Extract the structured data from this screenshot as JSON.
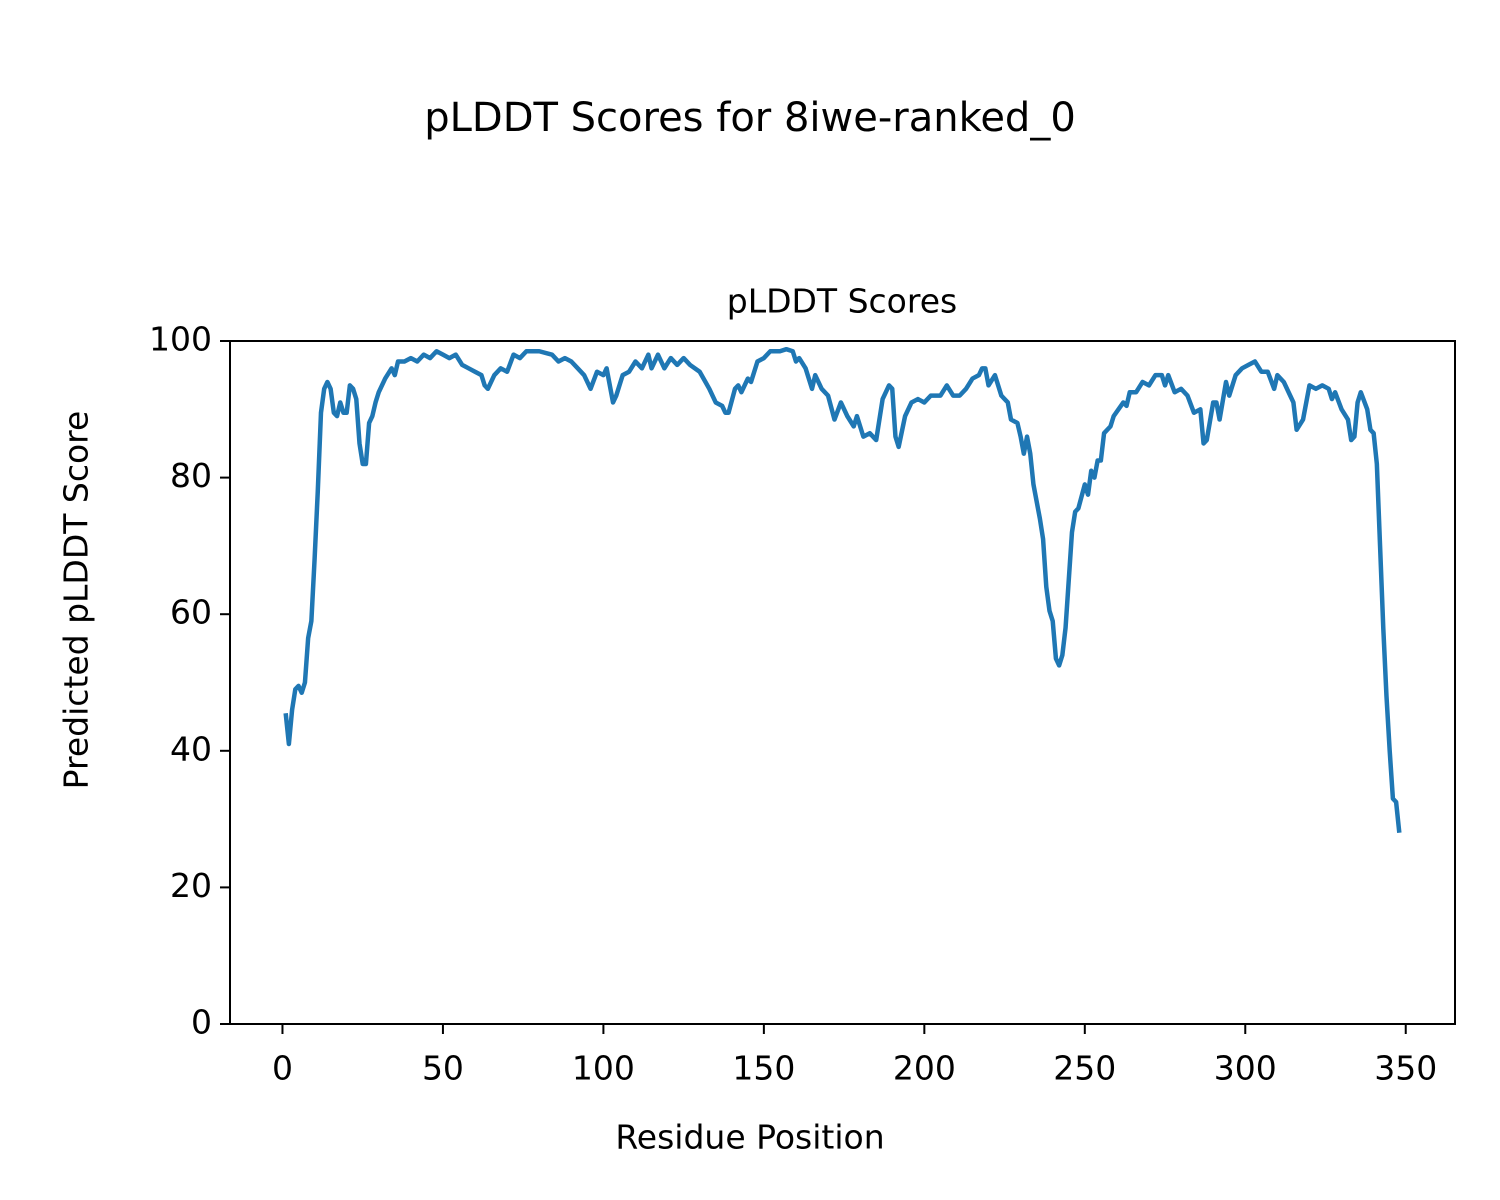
{
  "chart_data": {
    "type": "line",
    "suptitle": "pLDDT Scores for 8iwe-ranked_0",
    "title": "pLDDT Scores",
    "xlabel": "Residue Position",
    "ylabel": "Predicted pLDDT Score",
    "x": [
      1,
      2,
      3,
      4,
      5,
      6,
      7,
      8,
      9,
      10,
      11,
      12,
      13,
      14,
      15,
      16,
      17,
      18,
      19,
      20,
      21,
      22,
      23,
      24,
      25,
      26,
      27,
      28,
      29,
      30,
      32,
      34,
      35,
      36,
      38,
      40,
      42,
      44,
      46,
      48,
      50,
      52,
      54,
      56,
      58,
      60,
      62,
      63,
      64,
      66,
      68,
      70,
      72,
      74,
      76,
      80,
      84,
      86,
      88,
      90,
      92,
      94,
      96,
      98,
      100,
      101,
      103,
      104,
      106,
      108,
      110,
      112,
      114,
      115,
      117,
      119,
      121,
      123,
      125,
      127,
      130,
      133,
      135,
      137,
      138,
      139,
      141,
      142,
      143,
      145,
      146,
      148,
      150,
      152,
      155,
      157,
      159,
      160,
      161,
      163,
      165,
      166,
      168,
      170,
      172,
      174,
      176,
      178,
      179,
      181,
      183,
      185,
      187,
      189,
      190,
      191,
      192,
      194,
      196,
      198,
      200,
      202,
      205,
      207,
      209,
      211,
      213,
      215,
      217,
      218,
      219,
      220,
      222,
      224,
      226,
      227,
      229,
      230,
      231,
      232,
      233,
      234,
      236,
      237,
      238,
      239,
      240,
      241,
      242,
      243,
      244,
      245,
      246,
      247,
      248,
      250,
      251,
      252,
      253,
      254,
      255,
      256,
      258,
      259,
      262,
      263,
      264,
      266,
      268,
      270,
      272,
      274,
      275,
      276,
      278,
      280,
      282,
      284,
      286,
      287,
      288,
      290,
      291,
      292,
      294,
      295,
      297,
      299,
      301,
      303,
      305,
      307,
      309,
      310,
      312,
      314,
      315,
      316,
      318,
      320,
      322,
      324,
      326,
      327,
      328,
      330,
      332,
      333,
      334,
      335,
      336,
      338,
      339,
      340,
      341,
      342,
      343,
      344,
      345,
      346,
      347,
      348
    ],
    "series": [
      {
        "name": "pLDDT",
        "color": "#1f77b4",
        "values": [
          45.5,
          41,
          46,
          49,
          49.5,
          48.5,
          50,
          56.5,
          59,
          68,
          78,
          89.5,
          93,
          94,
          93,
          89.5,
          89,
          91,
          89.5,
          89.5,
          93.5,
          93,
          91.5,
          85,
          82,
          82,
          88,
          89,
          91,
          92.5,
          94.5,
          96,
          95,
          97,
          97,
          97.5,
          97,
          98,
          97.5,
          98.5,
          98,
          97.5,
          98,
          96.5,
          96,
          95.5,
          95,
          93.5,
          93,
          95,
          96,
          95.5,
          98,
          97.5,
          98.5,
          98.5,
          98,
          97,
          97.5,
          97,
          96,
          95,
          93,
          95.5,
          95,
          96,
          91,
          92,
          95,
          95.5,
          97,
          96,
          98,
          96,
          98,
          96,
          97.5,
          96.5,
          97.5,
          96.5,
          95.5,
          93,
          91,
          90.5,
          89.5,
          89.5,
          93,
          93.5,
          92.5,
          94.5,
          94,
          97,
          97.5,
          98.5,
          98.5,
          98.8,
          98.5,
          97,
          97.5,
          96,
          93,
          95,
          93,
          92,
          88.5,
          91,
          89,
          87.5,
          89,
          86,
          86.5,
          85.5,
          91.5,
          93.5,
          93,
          86,
          84.5,
          89,
          91,
          91.5,
          91,
          92,
          92,
          93.5,
          92,
          92,
          93,
          94.5,
          95,
          96,
          96,
          93.5,
          95,
          92,
          91,
          88.5,
          88,
          86,
          83.5,
          86,
          83.5,
          79,
          74,
          71,
          64,
          60.5,
          59,
          53.5,
          52.5,
          54,
          58,
          65,
          72,
          75,
          75.5,
          79,
          77.5,
          81,
          80,
          82.5,
          82.5,
          86.5,
          87.5,
          89,
          91,
          90.5,
          92.5,
          92.5,
          94,
          93.5,
          95,
          95,
          93.5,
          95,
          92.5,
          93,
          92,
          89.5,
          90,
          85,
          85.5,
          91,
          91,
          88.5,
          94,
          92,
          95,
          96,
          96.5,
          97,
          95.5,
          95.5,
          93,
          95,
          94,
          92,
          91,
          87,
          88.5,
          93.5,
          93,
          93.5,
          93,
          91.5,
          92.5,
          90,
          88.5,
          85.5,
          86,
          91,
          92.5,
          90,
          87,
          86.5,
          82,
          70,
          58,
          48,
          40,
          33,
          32.5,
          28
        ]
      }
    ],
    "xlim": [
      -16.35,
      365.35
    ],
    "xticks": [
      0,
      50,
      100,
      150,
      200,
      250,
      300,
      350
    ],
    "ylim": [
      0,
      100
    ],
    "yticks": [
      0,
      20,
      40,
      60,
      80,
      100
    ],
    "grid": false
  }
}
